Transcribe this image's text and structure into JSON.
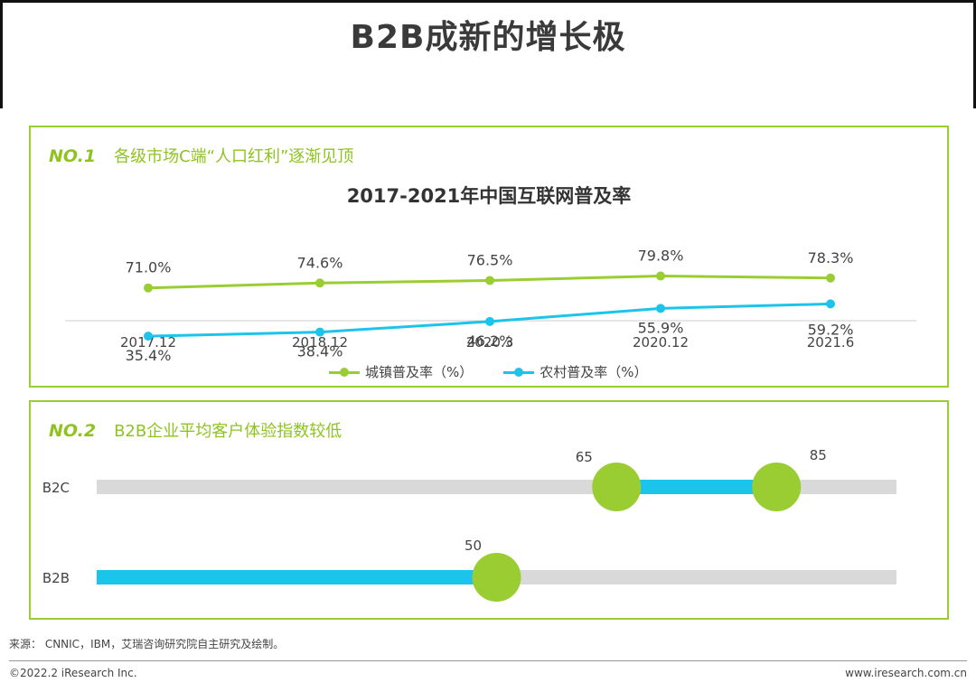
{
  "page": {
    "title": "B2B成新的增长极",
    "source": "来源： CNNIC，IBM，艾瑞咨询研究院自主研究及绘制。",
    "copyright": "©2022.2 iResearch Inc.",
    "website": "www.iresearch.com.cn"
  },
  "panel1": {
    "no": "NO.1",
    "subtitle": "各级市场C端“人口红利”逐渐见顶"
  },
  "panel2": {
    "no": "NO.2",
    "subtitle": "B2B企业平均客户体验指数较低"
  },
  "colors": {
    "green": "#9acd32",
    "cyan": "#1cc4ec",
    "track": "#d9d9d9"
  },
  "chart_data": [
    {
      "type": "line",
      "title": "2017-2021年中国互联网普及率",
      "categories": [
        "2017.12",
        "2018.12",
        "2020.3",
        "2020.12",
        "2021.6"
      ],
      "series": [
        {
          "name": "城镇普及率（%）",
          "values": [
            71.0,
            74.6,
            76.5,
            79.8,
            78.3
          ],
          "labels": [
            "71.0%",
            "74.6%",
            "76.5%",
            "79.8%",
            "78.3%"
          ]
        },
        {
          "name": "农村普及率（%）",
          "values": [
            35.4,
            38.4,
            46.2,
            55.9,
            59.2
          ],
          "labels": [
            "35.4%",
            "38.4%",
            "46.2%",
            "55.9%",
            "59.2%"
          ]
        }
      ],
      "legend": "bottom"
    },
    {
      "type": "bar",
      "categories": [
        "B2C",
        "B2B"
      ],
      "xlim": [
        0,
        100
      ],
      "ranges": [
        {
          "category": "B2C",
          "start": 65,
          "end": 85,
          "start_label": "65",
          "end_label": "85"
        },
        {
          "category": "B2B",
          "start": 0,
          "end": 50,
          "end_label": "50"
        }
      ]
    }
  ]
}
